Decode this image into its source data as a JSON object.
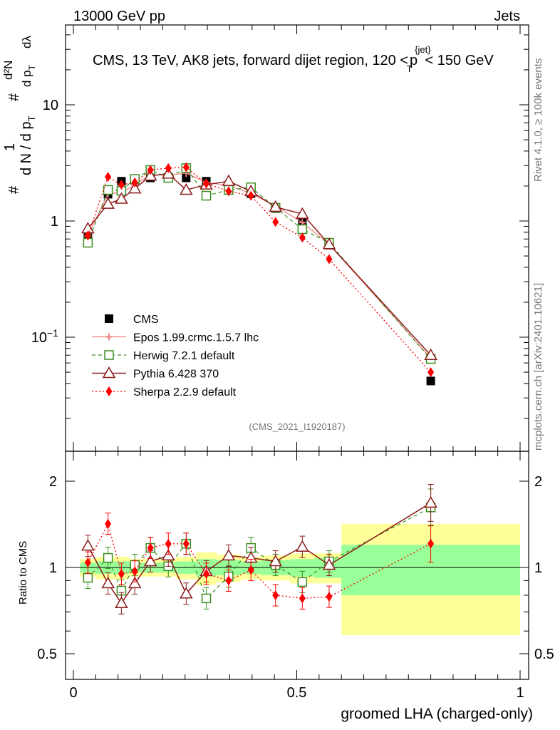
{
  "header": {
    "energy_label": "13000 GeV pp",
    "category_label": "Jets"
  },
  "side_text": {
    "rivet": "Rivet 4.1.0, ≥ 100k events",
    "mcplots": "mcplots.cern.ch [arXiv:2401.10621]"
  },
  "plot_title": {
    "prefix": "CMS, 13 TeV, AK8 jets, forward dijet region, 120 <",
    "pt_symbol": "p",
    "pt_sub": "T",
    "pt_sup": "{jet}",
    "suffix": "< 150 GeV"
  },
  "y_axis_main": {
    "l1": "#",
    "l2": "1",
    "l3": "d N / d p",
    "l3_sub": "T",
    "l4": "#",
    "l5": "d²N",
    "l6": "d p",
    "l6_sub": "T",
    "l7": "dλ"
  },
  "colors": {
    "cms": "#000000",
    "epos": "#f08080",
    "herwig": "#3a8e1e",
    "pythia": "#8b1a1a",
    "sherpa": "#ff0000",
    "band_inner": "#99ff99",
    "band_outer": "#ffff99"
  },
  "chart_data": [
    {
      "type": "scatter",
      "panel": "main",
      "xlabel": "groomed LHA (charged-only)",
      "ylabel": "1/(dN/dpT) d²N/(dpT dλ)",
      "xlim": [
        0,
        1
      ],
      "ylim": [
        0.008,
        40
      ],
      "yscale": "log",
      "y_tick_labels": [
        {
          "value": 0.1,
          "base": "10",
          "exp": "−1"
        },
        {
          "value": 1,
          "base": "1",
          "exp": ""
        },
        {
          "value": 10,
          "base": "10",
          "exp": ""
        }
      ],
      "x": [
        0.0325,
        0.0775,
        0.1075,
        0.1375,
        0.1725,
        0.2125,
        0.2525,
        0.2975,
        0.3475,
        0.3975,
        0.4525,
        0.5125,
        0.5725,
        0.8
      ],
      "bin_edges": [
        0.015,
        0.05,
        0.09,
        0.125,
        0.15,
        0.195,
        0.23,
        0.275,
        0.32,
        0.375,
        0.42,
        0.485,
        0.54,
        0.6,
        1.0
      ],
      "watermark": "(CMS_2021_I1920187)",
      "series": [
        {
          "key": "cms",
          "name": "CMS",
          "marker": "square-filled",
          "values": [
            0.72,
            1.7,
            2.2,
            2.25,
            2.35,
            2.35,
            2.35,
            2.2,
            2.0,
            1.72,
            1.28,
            0.97,
            0.62,
            0.042
          ]
        },
        {
          "key": "epos",
          "name": "Epos 1.99.crmc.1.5.7 lhc",
          "marker": "cross",
          "values": [
            0.74,
            1.72,
            1.75,
            2.05,
            2.5,
            2.48,
            2.58,
            2.15,
            2.02,
            1.72,
            1.35,
            0.97,
            0.63,
            0.066
          ]
        },
        {
          "key": "herwig",
          "name": "Herwig 7.2.1 default",
          "marker": "square-open",
          "values": [
            0.65,
            1.85,
            1.82,
            2.3,
            2.75,
            2.35,
            2.85,
            1.65,
            1.85,
            1.95,
            1.3,
            0.85,
            0.65,
            0.065
          ]
        },
        {
          "key": "pythia",
          "name": "Pythia 6.428 370",
          "marker": "triangle-open",
          "values": [
            0.86,
            1.4,
            1.55,
            1.9,
            2.45,
            2.55,
            1.85,
            2.05,
            2.2,
            1.8,
            1.32,
            1.15,
            0.63,
            0.07
          ]
        },
        {
          "key": "sherpa",
          "name": "Sherpa 2.2.9 default",
          "marker": "diamond-filled",
          "values": [
            0.75,
            2.4,
            2.05,
            2.15,
            2.75,
            2.85,
            2.9,
            2.1,
            1.8,
            1.65,
            0.98,
            0.72,
            0.47,
            0.05
          ]
        }
      ]
    },
    {
      "type": "scatter",
      "panel": "ratio",
      "xlabel": "groomed LHA (charged-only)",
      "ylabel": "Ratio to CMS",
      "xlim": [
        0,
        1
      ],
      "ylim": [
        0.4,
        2.3
      ],
      "x_tick_labels": [
        "0",
        "0.5",
        "1"
      ],
      "y_tick_labels": [
        "0.5",
        "1",
        "2"
      ],
      "bands": {
        "inner_half_width": [
          0.04,
          0.05,
          0.05,
          0.04,
          0.04,
          0.04,
          0.05,
          0.07,
          0.06,
          0.05,
          0.06,
          0.07,
          0.08,
          0.2
        ],
        "outer_half_width": [
          0.07,
          0.09,
          0.09,
          0.07,
          0.07,
          0.07,
          0.09,
          0.13,
          0.11,
          0.09,
          0.1,
          0.12,
          0.12,
          0.42
        ]
      },
      "series": [
        {
          "key": "herwig",
          "values": [
            0.92,
            1.08,
            0.83,
            1.02,
            1.17,
            1.01,
            1.21,
            0.78,
            0.93,
            1.17,
            1.02,
            0.89,
            1.05,
            1.62
          ]
        },
        {
          "key": "pythia",
          "values": [
            1.19,
            0.88,
            0.75,
            0.88,
            1.05,
            1.1,
            0.81,
            0.97,
            1.1,
            1.08,
            1.05,
            1.18,
            1.02,
            1.68
          ]
        },
        {
          "key": "sherpa",
          "values": [
            1.04,
            1.42,
            0.95,
            0.97,
            1.17,
            1.21,
            1.21,
            0.95,
            0.9,
            0.98,
            0.8,
            0.78,
            0.79,
            1.21
          ]
        }
      ]
    }
  ]
}
